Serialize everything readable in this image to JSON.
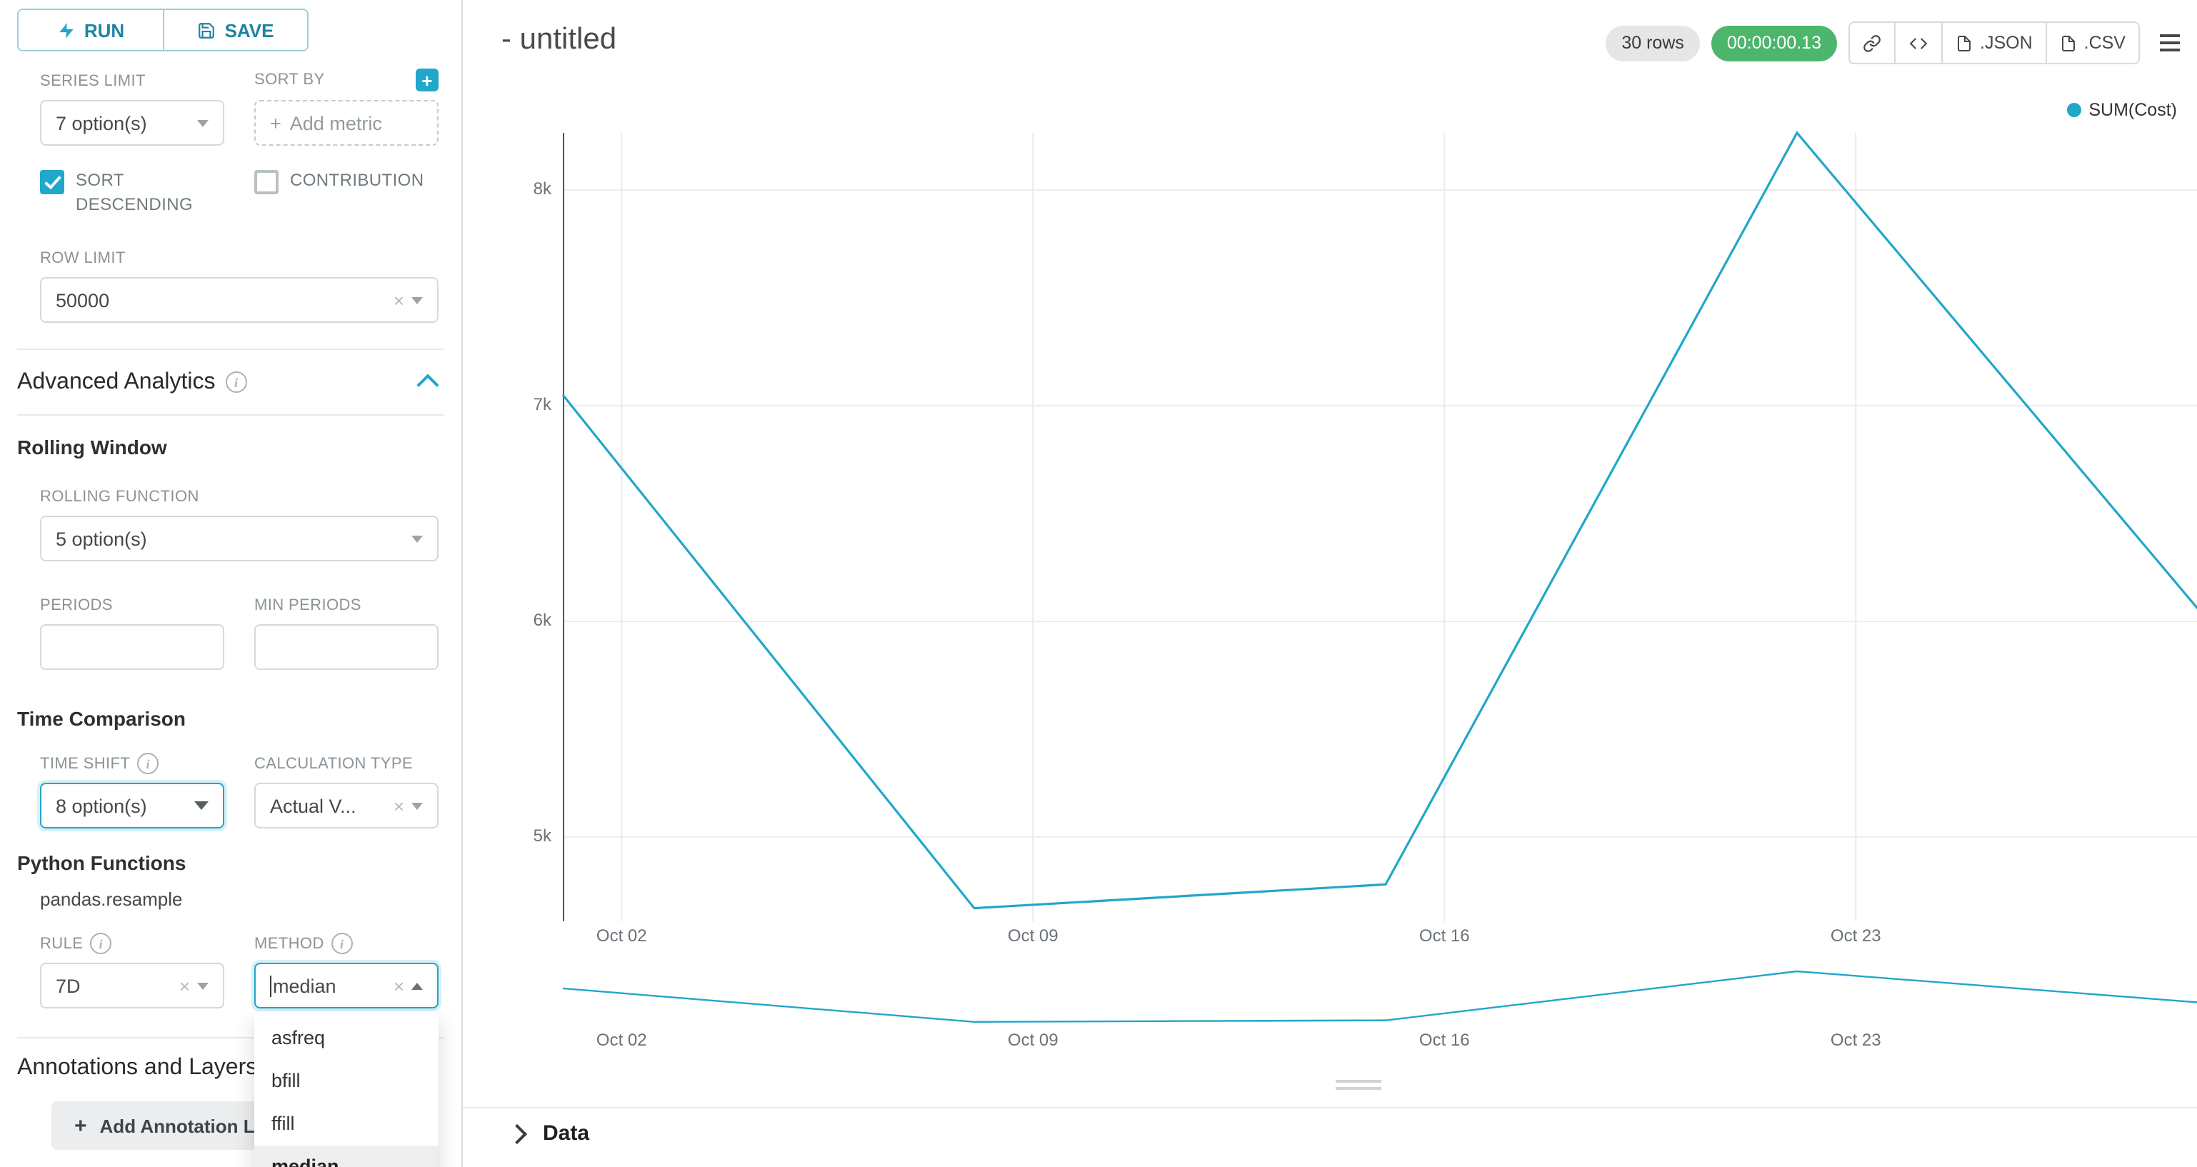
{
  "colors": {
    "primary": "#20a7c9",
    "timer_badge_bg": "#4db66d",
    "rows_badge_bg": "#e4e6e7"
  },
  "run_save": {
    "run": "RUN",
    "save": "SAVE"
  },
  "panel": {
    "series_limit_label": "SERIES LIMIT",
    "series_limit_value": "7 option(s)",
    "sort_by_label": "SORT BY",
    "sort_by_placeholder": "Add metric",
    "sort_descending_label": "SORT DESCENDING",
    "contribution_label": "CONTRIBUTION",
    "row_limit_label": "ROW LIMIT",
    "row_limit_value": "50000",
    "advanced_analytics_title": "Advanced Analytics",
    "rolling_window_title": "Rolling Window",
    "rolling_function_label": "ROLLING FUNCTION",
    "rolling_function_value": "5 option(s)",
    "periods_label": "PERIODS",
    "min_periods_label": "MIN PERIODS",
    "time_comparison_title": "Time Comparison",
    "time_shift_label": "TIME SHIFT",
    "time_shift_value": "8 option(s)",
    "calculation_type_label": "CALCULATION TYPE",
    "calculation_type_value": "Actual V...",
    "python_functions_title": "Python Functions",
    "pandas_resample_label": "pandas.resample",
    "rule_label": "RULE",
    "rule_value": "7D",
    "method_label": "METHOD",
    "method_value": "median",
    "method_options": [
      "asfreq",
      "bfill",
      "ffill",
      "median"
    ],
    "method_selected": "median",
    "annotations_title": "Annotations and Layers",
    "add_annotation_button": "Add Annotation Layer"
  },
  "header": {
    "title": "- untitled",
    "rows_badge": "30 rows",
    "timer_badge": "00:00:00.13",
    "json_button": ".JSON",
    "csv_button": ".CSV"
  },
  "chart_data": {
    "type": "line",
    "title": "",
    "legend": [
      "SUM(Cost)"
    ],
    "color": "#20a7c9",
    "grid": true,
    "legend_position": "top-right",
    "series": [
      {
        "name": "SUM(Cost)",
        "x_days": [
          0,
          7,
          14,
          21,
          28
        ],
        "values": [
          7050,
          4670,
          4780,
          8265,
          6000
        ]
      }
    ],
    "x_domain_days": [
      0,
      28
    ],
    "x_tick_days": [
      1,
      8,
      15,
      22
    ],
    "x_tick_labels": [
      "Oct 02",
      "Oct 09",
      "Oct 16",
      "Oct 23"
    ],
    "y_ticks": [
      {
        "value": 8000,
        "label": "8k"
      },
      {
        "value": 7000,
        "label": "7k"
      },
      {
        "value": 6000,
        "label": "6k"
      },
      {
        "value": 5000,
        "label": "5k"
      }
    ],
    "y_domain": [
      4609,
      8265
    ],
    "xlabel": "",
    "ylabel": ""
  },
  "data_panel": {
    "title": "Data"
  }
}
